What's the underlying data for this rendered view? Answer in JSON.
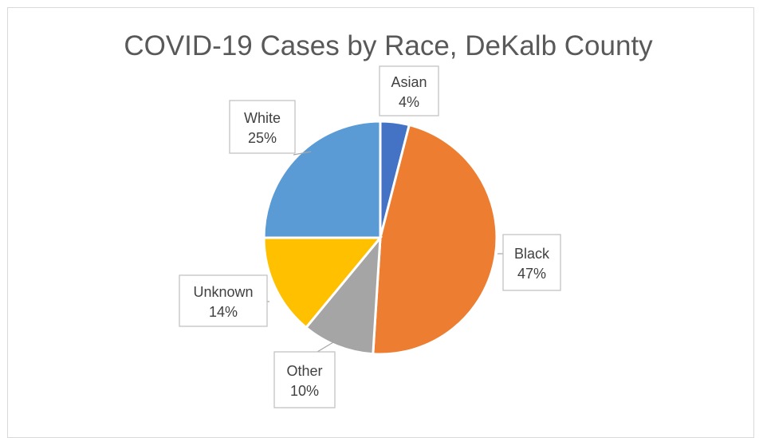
{
  "chart_data": {
    "type": "pie",
    "title": "COVID-19 Cases by Race, DeKalb County",
    "categories": [
      "Asian",
      "Black",
      "Other",
      "Unknown",
      "White"
    ],
    "values": [
      4,
      47,
      10,
      14,
      25
    ],
    "value_labels": [
      "4%",
      "47%",
      "10%",
      "14%",
      "25%"
    ],
    "colors": [
      "#4472C4",
      "#ED7D31",
      "#A5A5A5",
      "#FFC000",
      "#5B9BD5"
    ],
    "start_angle": "12 o'clock, clockwise",
    "data_labels": "category and percentage, outside with callout boxes",
    "legend": "none"
  }
}
